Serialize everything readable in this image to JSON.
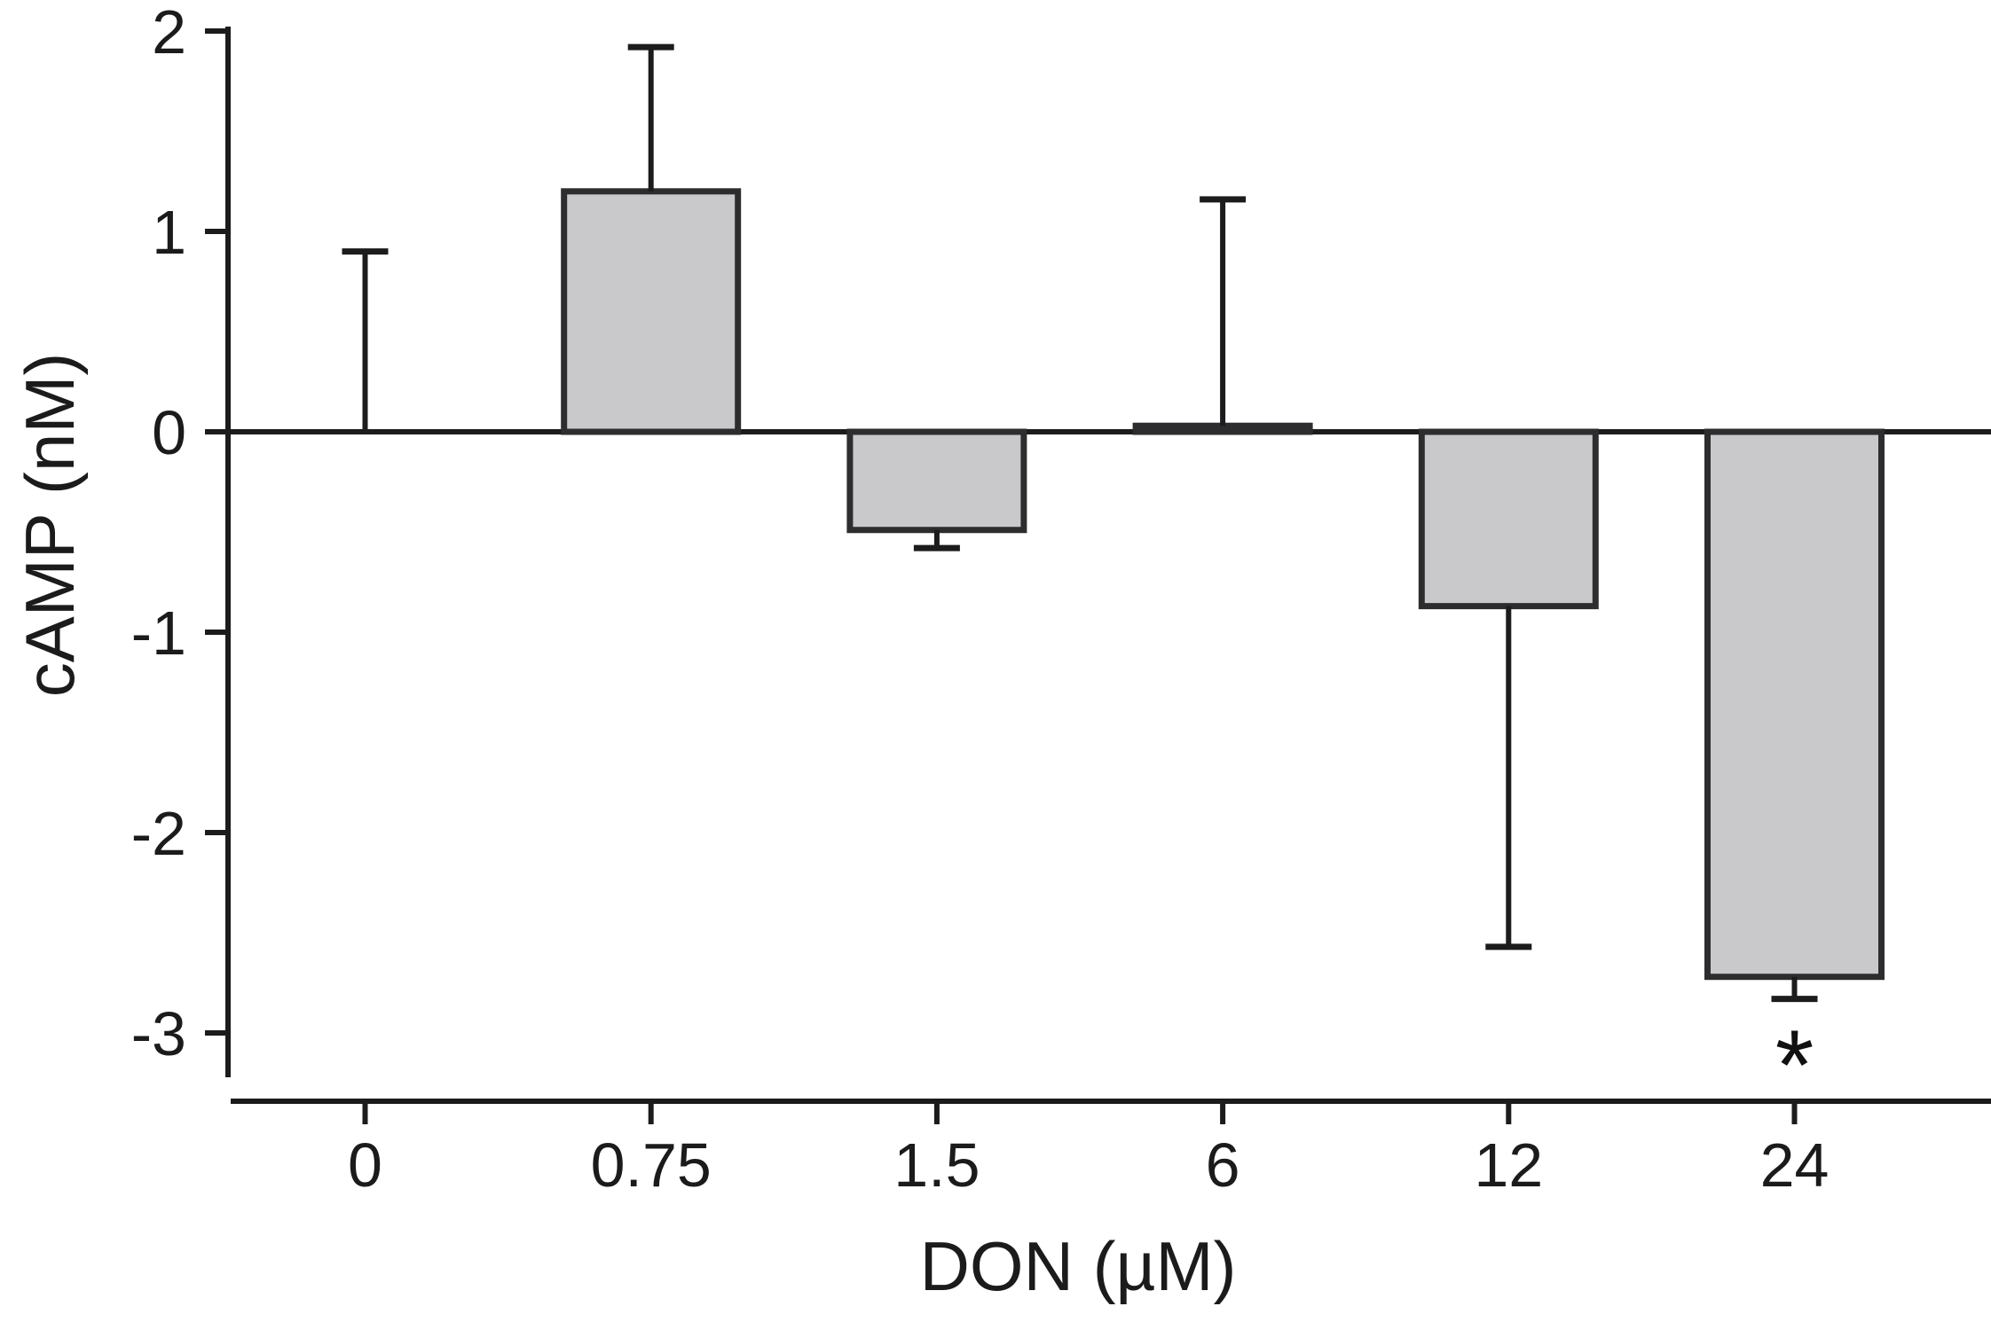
{
  "chart_data": {
    "type": "bar",
    "title": "",
    "xlabel": "DON (µM)",
    "ylabel": "cAMP (nM)",
    "categories": [
      "0",
      "0.75",
      "1.5",
      "6",
      "12",
      "24"
    ],
    "values": [
      0.0,
      1.2,
      -0.49,
      0.03,
      -0.87,
      -2.72
    ],
    "errors": [
      0.9,
      0.72,
      0.09,
      1.13,
      1.7,
      0.11
    ],
    "error_direction": "away-from-zero",
    "significance": [
      "",
      "",
      "",
      "",
      "",
      "*"
    ],
    "yticks": [
      2,
      1,
      0,
      -1,
      -2,
      -3
    ],
    "ylim": [
      -3.25,
      2.05
    ],
    "grid": false,
    "legend_position": "none",
    "colors": {
      "bar_fill": "#c9c9cb",
      "bar_stroke": "#2d2d2f",
      "axis_line": "#1c1c1c",
      "text": "#1b1b1b"
    }
  }
}
